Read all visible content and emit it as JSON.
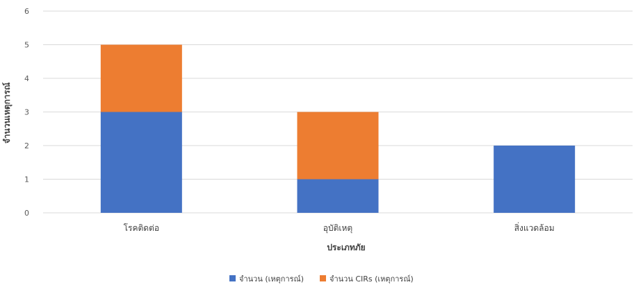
{
  "chart_data": {
    "type": "bar",
    "stacked": true,
    "categories": [
      "โรคติดต่อ",
      "อุบัติเหตุ",
      "สิ่งแวดล้อม"
    ],
    "series": [
      {
        "name": "จำนวน (เหตุการณ์)",
        "values": [
          3,
          1,
          2
        ],
        "color": "#4472C4"
      },
      {
        "name": "จำนวน CIRs (เหตุการณ์)",
        "values": [
          2,
          2,
          0
        ],
        "color": "#ED7D31"
      }
    ],
    "xlabel": "ประเภทภัย",
    "ylabel": "จำนวนเหตุการณ์",
    "ylim": [
      0,
      6
    ],
    "yticks": [
      "0",
      "1",
      "2",
      "3",
      "4",
      "5",
      "6"
    ],
    "grid": true,
    "legend_position": "bottom",
    "gridline_color": "#D9D9D9"
  }
}
